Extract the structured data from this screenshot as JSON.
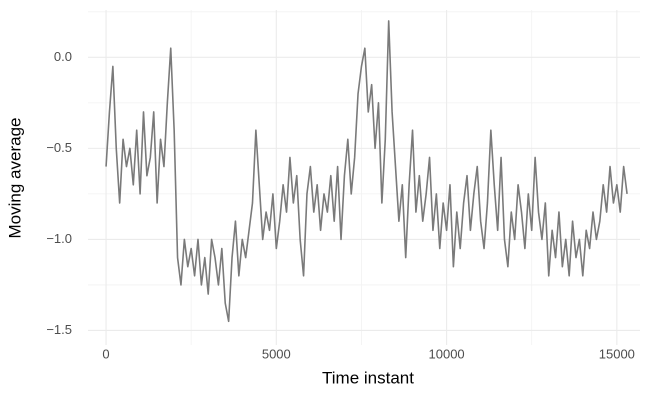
{
  "chart_data": {
    "type": "line",
    "x_label": "Time instant",
    "y_label": "Moving average",
    "color": "#7a7a7a",
    "xlim": [
      -530,
      15680
    ],
    "ylim": [
      -1.58,
      0.26
    ],
    "xticks": [
      0,
      5000,
      10000,
      15000
    ],
    "yticks": [
      {
        "value": 0,
        "label": "0.0"
      },
      {
        "value": -0.5,
        "label": "−0.5"
      },
      {
        "value": -1.0,
        "label": "−1.0"
      },
      {
        "value": -1.5,
        "label": "−1.5"
      }
    ],
    "xminorticks": [
      2500,
      7500,
      12500
    ],
    "yminorticks": [
      0.25,
      -0.25,
      -0.75,
      -1.25
    ],
    "grid": true,
    "x": [
      0,
      100,
      200,
      300,
      400,
      500,
      600,
      700,
      800,
      900,
      1000,
      1100,
      1200,
      1300,
      1400,
      1500,
      1600,
      1700,
      1800,
      1900,
      2000,
      2100,
      2200,
      2300,
      2400,
      2500,
      2600,
      2700,
      2800,
      2900,
      3000,
      3100,
      3200,
      3300,
      3400,
      3500,
      3600,
      3700,
      3800,
      3900,
      4000,
      4100,
      4200,
      4300,
      4400,
      4500,
      4600,
      4700,
      4800,
      4900,
      5000,
      5100,
      5200,
      5300,
      5400,
      5500,
      5600,
      5700,
      5800,
      5900,
      6000,
      6100,
      6200,
      6300,
      6400,
      6500,
      6600,
      6700,
      6800,
      6900,
      7000,
      7100,
      7200,
      7300,
      7400,
      7500,
      7600,
      7700,
      7800,
      7900,
      8000,
      8100,
      8200,
      8300,
      8400,
      8500,
      8600,
      8700,
      8800,
      8900,
      9000,
      9100,
      9200,
      9300,
      9400,
      9500,
      9600,
      9700,
      9800,
      9900,
      10000,
      10100,
      10200,
      10300,
      10400,
      10500,
      10600,
      10700,
      10800,
      10900,
      11000,
      11100,
      11200,
      11300,
      11400,
      11500,
      11600,
      11700,
      11800,
      11900,
      12000,
      12100,
      12200,
      12300,
      12400,
      12500,
      12600,
      12700,
      12800,
      12900,
      13000,
      13100,
      13200,
      13300,
      13400,
      13500,
      13600,
      13700,
      13800,
      13900,
      14000,
      14100,
      14200,
      14300,
      14400,
      14500,
      14600,
      14700,
      14800,
      14900,
      15000,
      15100,
      15200,
      15300
    ],
    "values": [
      -0.6,
      -0.3,
      -0.05,
      -0.5,
      -0.8,
      -0.45,
      -0.6,
      -0.5,
      -0.7,
      -0.4,
      -0.75,
      -0.3,
      -0.65,
      -0.55,
      -0.3,
      -0.8,
      -0.45,
      -0.6,
      -0.25,
      0.05,
      -0.4,
      -1.1,
      -1.25,
      -1.0,
      -1.15,
      -1.05,
      -1.2,
      -1.0,
      -1.25,
      -1.1,
      -1.3,
      -1.0,
      -1.1,
      -1.25,
      -1.05,
      -1.35,
      -1.45,
      -1.1,
      -0.9,
      -1.2,
      -1.0,
      -1.1,
      -0.95,
      -0.8,
      -0.4,
      -0.7,
      -1.0,
      -0.85,
      -0.95,
      -0.75,
      -1.05,
      -0.9,
      -0.7,
      -0.85,
      -0.55,
      -0.8,
      -0.65,
      -1.0,
      -1.2,
      -0.75,
      -0.6,
      -0.85,
      -0.7,
      -0.95,
      -0.75,
      -0.85,
      -0.65,
      -0.9,
      -0.6,
      -1.0,
      -0.65,
      -0.45,
      -0.75,
      -0.55,
      -0.2,
      -0.05,
      0.05,
      -0.3,
      -0.15,
      -0.5,
      -0.25,
      -0.8,
      -0.45,
      0.2,
      -0.3,
      -0.6,
      -0.9,
      -0.7,
      -1.1,
      -0.7,
      -0.4,
      -0.85,
      -0.65,
      -0.9,
      -0.75,
      -0.55,
      -0.95,
      -0.75,
      -1.05,
      -0.8,
      -0.95,
      -0.7,
      -1.15,
      -0.85,
      -1.05,
      -0.8,
      -0.65,
      -0.95,
      -0.75,
      -0.6,
      -0.9,
      -1.05,
      -0.8,
      -0.4,
      -0.7,
      -0.95,
      -0.55,
      -1.0,
      -1.15,
      -0.85,
      -1.0,
      -0.7,
      -0.85,
      -1.05,
      -0.75,
      -0.95,
      -0.55,
      -0.85,
      -1.0,
      -0.8,
      -1.2,
      -0.95,
      -1.1,
      -0.85,
      -1.15,
      -1.0,
      -1.2,
      -0.9,
      -1.1,
      -1.0,
      -1.2,
      -0.95,
      -1.05,
      -0.85,
      -1.0,
      -0.9,
      -0.7,
      -0.85,
      -0.6,
      -0.8,
      -0.7,
      -0.85,
      -0.6,
      -0.75
    ]
  }
}
